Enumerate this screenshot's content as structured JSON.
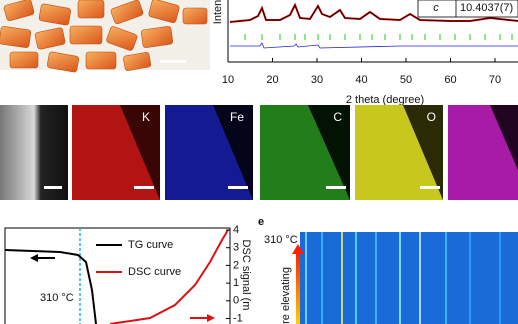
{
  "xrd": {
    "y_label": "Inten",
    "x_label": "2 theta (degree)",
    "x_ticks": [
      10,
      20,
      30,
      40,
      50,
      60,
      70
    ],
    "table": {
      "param": "c",
      "value": "10.4037(7)"
    }
  },
  "mapping": {
    "elements": [
      "K",
      "Fe",
      "C",
      "O"
    ]
  },
  "thermal": {
    "legend": [
      "TG curve",
      "DSC curve"
    ],
    "temperature": "310 °C",
    "y2_label": "DSC signal (m",
    "y2_ticks": [
      4,
      3,
      2,
      1,
      0,
      -1
    ]
  },
  "heatmap": {
    "panel_label": "e",
    "temperature": "310 °C",
    "y_label": "ture elevating"
  }
}
